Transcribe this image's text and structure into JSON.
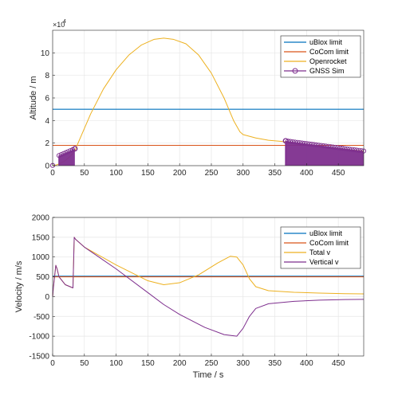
{
  "chart_data": [
    {
      "type": "line",
      "ylabel": "Altitude / m",
      "xlabel": "",
      "exponent_label": "×10",
      "exponent_power": "4",
      "xlim": [
        0,
        490
      ],
      "ylim": [
        0,
        12
      ],
      "xticks": [
        0,
        50,
        100,
        150,
        200,
        250,
        300,
        350,
        400,
        450
      ],
      "yticks": [
        0,
        2,
        4,
        6,
        8,
        10
      ],
      "grid": true,
      "legend_position": "top-right",
      "series": [
        {
          "name": "uBlox limit",
          "color": "#0072BD",
          "kind": "hline",
          "value": 5.0
        },
        {
          "name": "CoCom limit",
          "color": "#D95319",
          "kind": "hline",
          "value": 1.8
        },
        {
          "name": "Openrocket",
          "color": "#EDB120",
          "kind": "line",
          "points": [
            [
              0,
              0.0
            ],
            [
              5,
              0.05
            ],
            [
              10,
              0.15
            ],
            [
              20,
              0.45
            ],
            [
              30,
              0.95
            ],
            [
              35,
              1.3
            ],
            [
              40,
              2.0
            ],
            [
              60,
              4.6
            ],
            [
              80,
              6.8
            ],
            [
              100,
              8.5
            ],
            [
              120,
              9.8
            ],
            [
              140,
              10.7
            ],
            [
              160,
              11.2
            ],
            [
              175,
              11.3
            ],
            [
              190,
              11.2
            ],
            [
              210,
              10.8
            ],
            [
              230,
              9.8
            ],
            [
              250,
              8.2
            ],
            [
              270,
              6.0
            ],
            [
              285,
              4.0
            ],
            [
              295,
              3.0
            ],
            [
              300,
              2.75
            ],
            [
              320,
              2.45
            ],
            [
              340,
              2.25
            ],
            [
              360,
              2.15
            ],
            [
              380,
              2.0
            ],
            [
              400,
              1.85
            ],
            [
              420,
              1.72
            ],
            [
              440,
              1.58
            ],
            [
              460,
              1.45
            ],
            [
              490,
              1.3
            ]
          ]
        },
        {
          "name": "GNSS Sim",
          "color": "#7E2F8E",
          "kind": "markers",
          "start_marker": [
            0,
            0.02
          ],
          "fill_segments": [
            {
              "x": [
                10,
                35
              ],
              "y": [
                0.9,
                1.5
              ]
            },
            {
              "x": [
                367,
                490
              ],
              "y": [
                2.2,
                1.3
              ]
            }
          ],
          "end_markers": [
            [
              35,
              1.5
            ],
            [
              367,
              2.2
            ]
          ]
        }
      ]
    },
    {
      "type": "line",
      "ylabel": "Velocity / m/s",
      "xlabel": "Time / s",
      "xlim": [
        0,
        490
      ],
      "ylim": [
        -1500,
        2000
      ],
      "xticks": [
        0,
        50,
        100,
        150,
        200,
        250,
        300,
        350,
        400,
        450
      ],
      "yticks": [
        -1500,
        -1000,
        -500,
        0,
        500,
        1000,
        1500,
        2000
      ],
      "grid": true,
      "legend_position": "top-right",
      "series": [
        {
          "name": "uBlox limit",
          "color": "#0072BD",
          "kind": "hline",
          "value": 515
        },
        {
          "name": "CoCom limit",
          "color": "#D95319",
          "kind": "hline",
          "value": 500
        },
        {
          "name": "Total v",
          "color": "#EDB120",
          "kind": "line",
          "points": [
            [
              0,
              0
            ],
            [
              1,
              200
            ],
            [
              3,
              500
            ],
            [
              5,
              790
            ],
            [
              7,
              700
            ],
            [
              10,
              500
            ],
            [
              20,
              300
            ],
            [
              32,
              220
            ],
            [
              34,
              1500
            ],
            [
              36,
              1450
            ],
            [
              50,
              1250
            ],
            [
              100,
              800
            ],
            [
              150,
              400
            ],
            [
              175,
              300
            ],
            [
              200,
              350
            ],
            [
              230,
              550
            ],
            [
              260,
              850
            ],
            [
              280,
              1020
            ],
            [
              290,
              1000
            ],
            [
              300,
              800
            ],
            [
              310,
              450
            ],
            [
              320,
              250
            ],
            [
              340,
              150
            ],
            [
              380,
              110
            ],
            [
              420,
              90
            ],
            [
              460,
              75
            ],
            [
              490,
              70
            ]
          ]
        },
        {
          "name": "Vertical v",
          "color": "#7E2F8E",
          "kind": "line",
          "points": [
            [
              0,
              0
            ],
            [
              1,
              200
            ],
            [
              3,
              500
            ],
            [
              5,
              790
            ],
            [
              7,
              700
            ],
            [
              10,
              500
            ],
            [
              20,
              300
            ],
            [
              32,
              220
            ],
            [
              34,
              1500
            ],
            [
              36,
              1450
            ],
            [
              50,
              1250
            ],
            [
              100,
              700
            ],
            [
              150,
              100
            ],
            [
              175,
              -200
            ],
            [
              200,
              -450
            ],
            [
              240,
              -780
            ],
            [
              270,
              -960
            ],
            [
              290,
              -1000
            ],
            [
              300,
              -800
            ],
            [
              310,
              -500
            ],
            [
              320,
              -300
            ],
            [
              340,
              -180
            ],
            [
              380,
              -120
            ],
            [
              420,
              -90
            ],
            [
              460,
              -75
            ],
            [
              490,
              -70
            ]
          ]
        }
      ]
    }
  ]
}
